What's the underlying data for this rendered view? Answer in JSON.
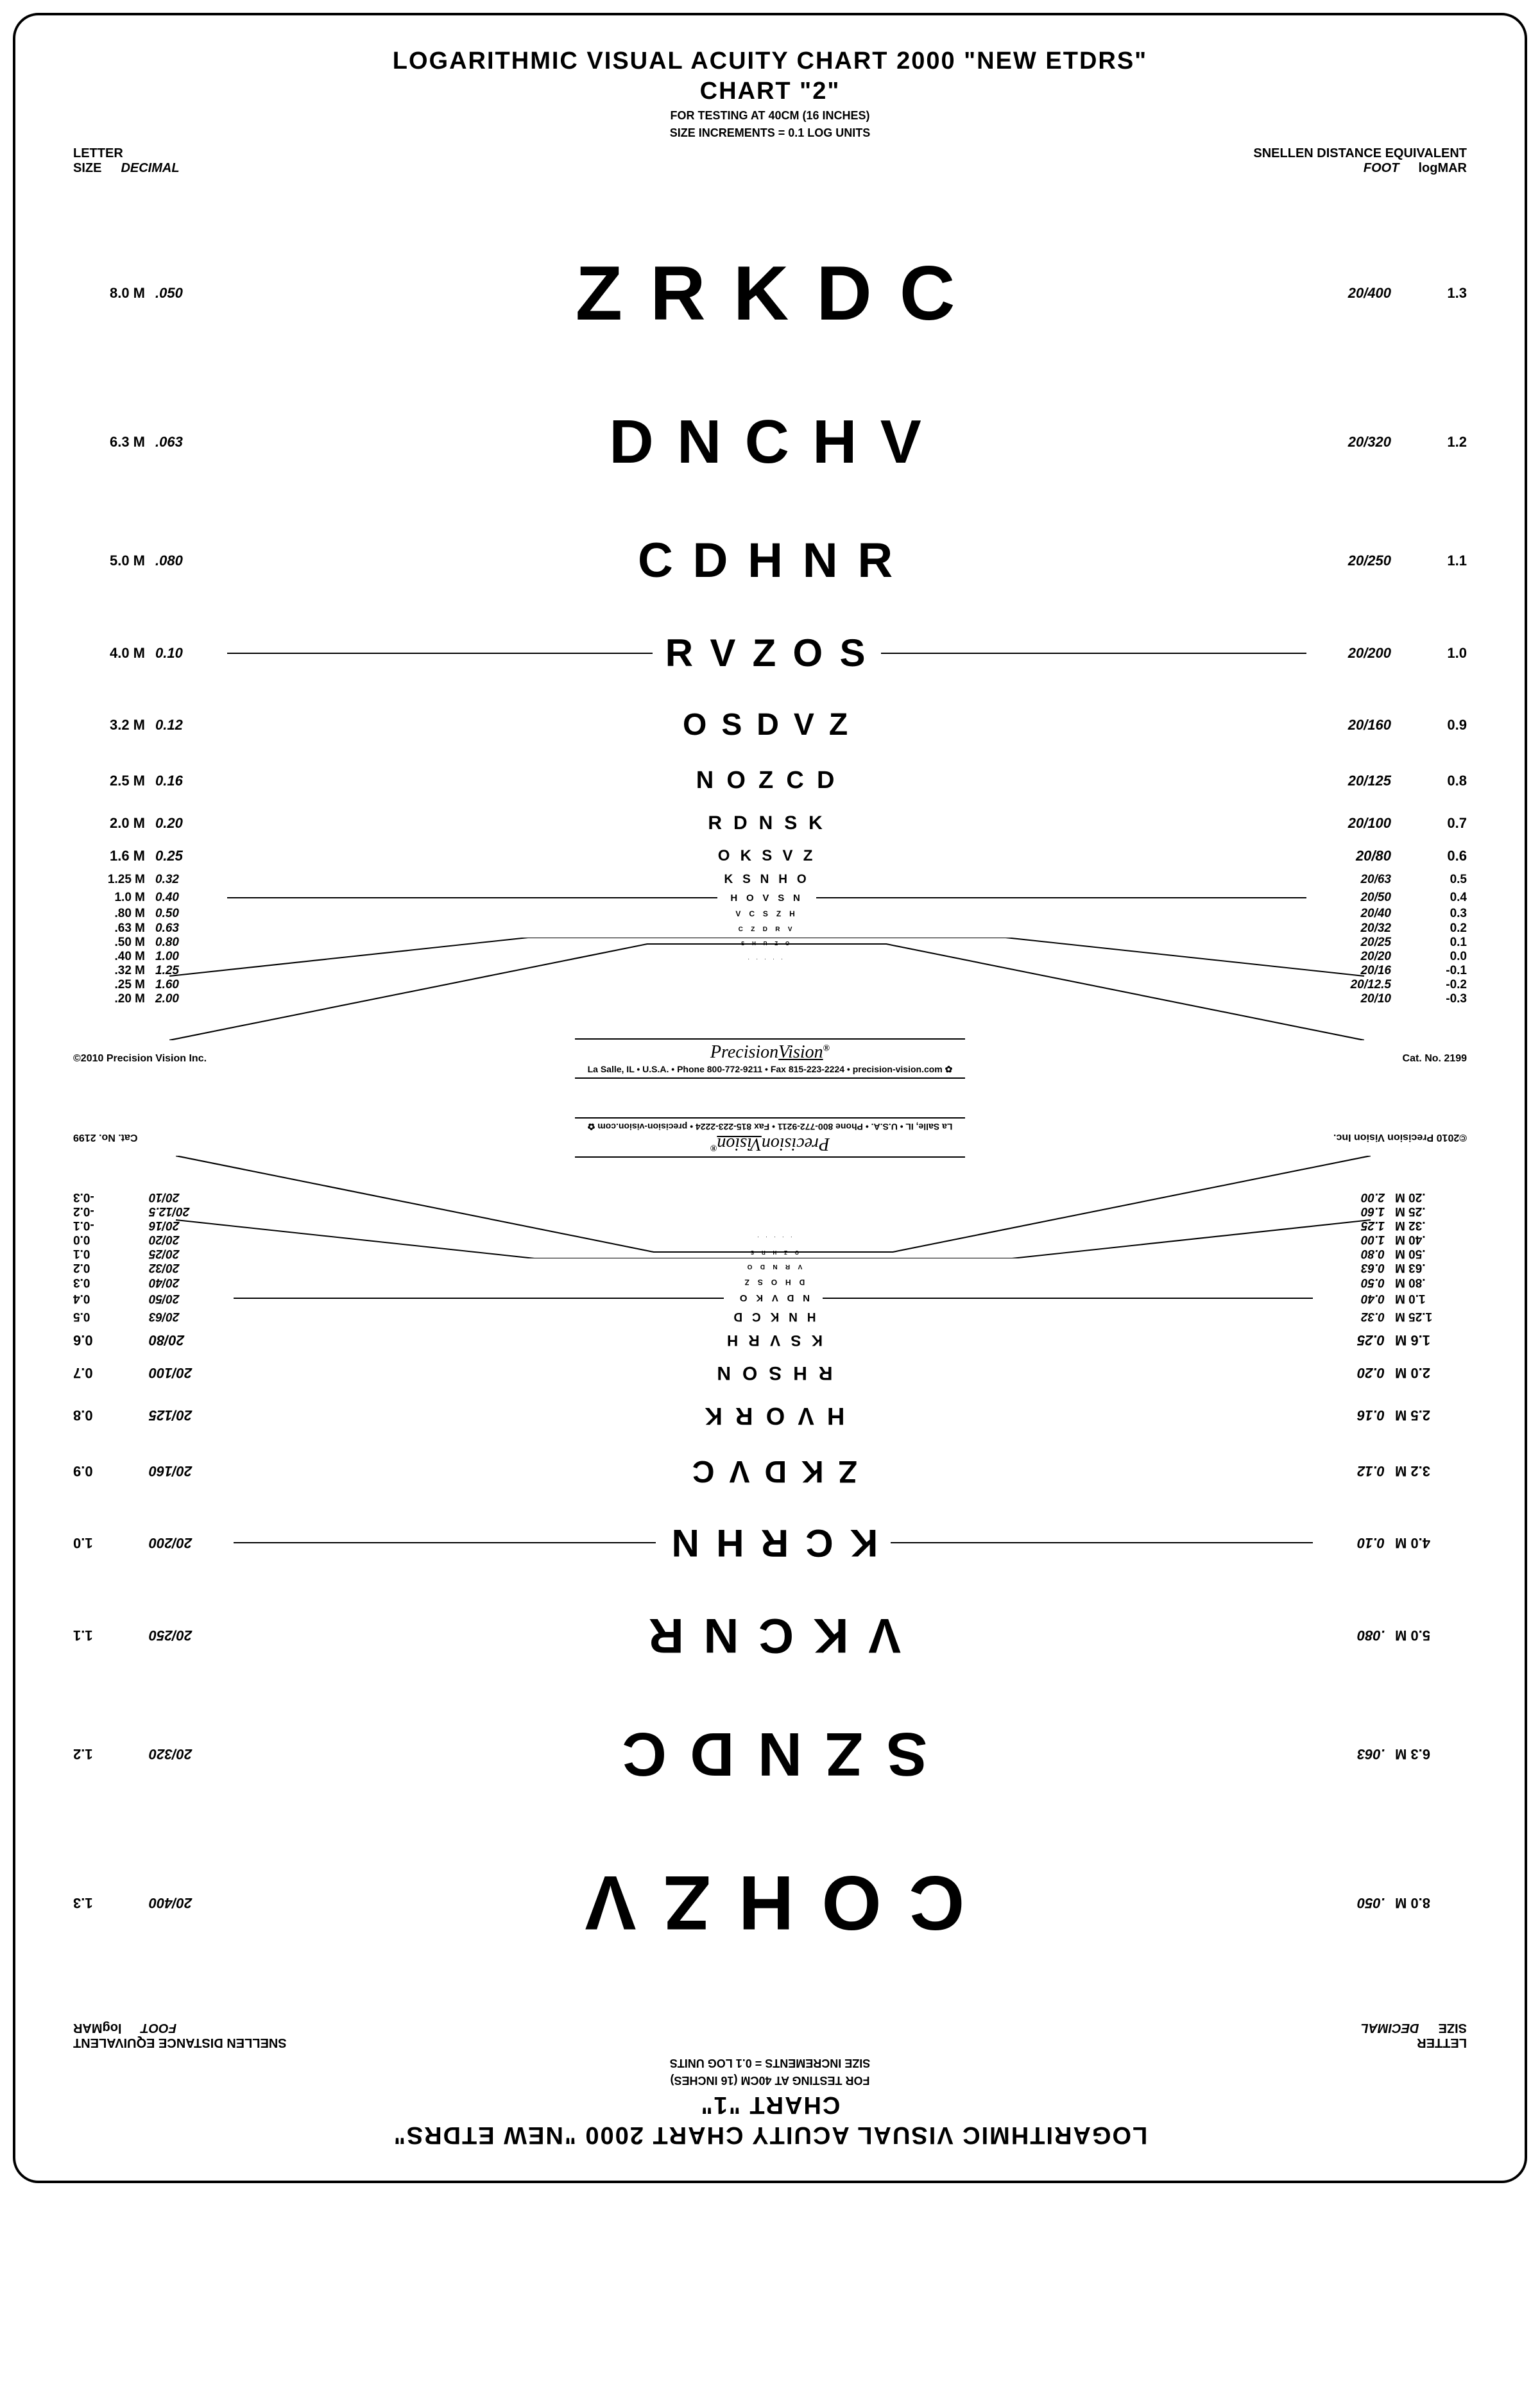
{
  "title_main": "LOGARITHMIC VISUAL ACUITY CHART 2000  \"NEW ETDRS\"",
  "title_small1": "FOR TESTING AT 40CM (16 INCHES)",
  "title_small2": "SIZE INCREMENTS = 0.1 LOG UNITS",
  "hdr_letter_size": "LETTER",
  "hdr_size": "SIZE",
  "hdr_decimal": "DECIMAL",
  "hdr_sde": "SNELLEN DISTANCE EQUIVALENT",
  "hdr_foot": "FOOT",
  "hdr_logmar": "logMAR",
  "footer_copyright": "©2010 Precision Vision Inc.",
  "footer_logo_a": "Precision",
  "footer_logo_b": "Vision",
  "footer_addr": "La Salle, IL • U.S.A. • Phone 800-772-9211 • Fax 815-223-2224 • precision-vision.com ✿",
  "footer_cat": "Cat. No. 2199",
  "chart2": {
    "title_sub": "CHART \"2\"",
    "rows": [
      {
        "m": "8.0 M",
        "dec": ".050",
        "letters": "Z R K D C",
        "sn": "20/400",
        "log": "1.3",
        "fs": 120,
        "pad": 60,
        "rule": 0,
        "sm": 0
      },
      {
        "m": "6.3 M",
        "dec": ".063",
        "letters": "D N C H V",
        "sn": "20/320",
        "log": "1.2",
        "fs": 96,
        "pad": 48,
        "rule": 0,
        "sm": 0
      },
      {
        "m": "5.0 M",
        "dec": ".080",
        "letters": "C D H N R",
        "sn": "20/250",
        "log": "1.1",
        "fs": 76,
        "pad": 38,
        "rule": 0,
        "sm": 0
      },
      {
        "m": "4.0 M",
        "dec": "0.10",
        "letters": "R V Z O S",
        "sn": "20/200",
        "log": "1.0",
        "fs": 60,
        "pad": 28,
        "rule": 1,
        "sm": 0
      },
      {
        "m": "3.2 M",
        "dec": "0.12",
        "letters": "O S D V Z",
        "sn": "20/160",
        "log": "0.9",
        "fs": 48,
        "pad": 22,
        "rule": 0,
        "sm": 0
      },
      {
        "m": "2.5 M",
        "dec": "0.16",
        "letters": "N O Z C D",
        "sn": "20/125",
        "log": "0.8",
        "fs": 38,
        "pad": 16,
        "rule": 0,
        "sm": 0
      },
      {
        "m": "2.0 M",
        "dec": "0.20",
        "letters": "R D N S K",
        "sn": "20/100",
        "log": "0.7",
        "fs": 30,
        "pad": 12,
        "rule": 0,
        "sm": 0
      },
      {
        "m": "1.6 M",
        "dec": "0.25",
        "letters": "O K S V Z",
        "sn": "20/80",
        "log": "0.6",
        "fs": 24,
        "pad": 8,
        "rule": 0,
        "sm": 0
      },
      {
        "m": "1.25 M",
        "dec": "0.32",
        "letters": "K S N H O",
        "sn": "20/63",
        "log": "0.5",
        "fs": 19,
        "pad": 4,
        "rule": 0,
        "sm": 1
      },
      {
        "m": "1.0 M",
        "dec": "0.40",
        "letters": "H O V S N",
        "sn": "20/50",
        "log": "0.4",
        "fs": 15,
        "pad": 2,
        "rule": 1,
        "sm": 1
      },
      {
        "m": ".80 M",
        "dec": "0.50",
        "letters": "V C S Z H",
        "sn": "20/40",
        "log": "0.3",
        "fs": 12,
        "pad": 1,
        "rule": 0,
        "sm": 1
      },
      {
        "m": ".63 M",
        "dec": "0.63",
        "letters": "C Z D R V",
        "sn": "20/32",
        "log": "0.2",
        "fs": 10,
        "pad": 0,
        "rule": 0,
        "sm": 1
      },
      {
        "m": ".50 M",
        "dec": "0.80",
        "letters": "S H R Z O",
        "sn": "20/25",
        "log": "0.1",
        "fs": 8,
        "pad": 0,
        "rule": 0,
        "sm": 1
      },
      {
        "m": ".40 M",
        "dec": "1.00",
        "letters": ". . . . .",
        "sn": "20/20",
        "log": "0.0",
        "fs": 6,
        "pad": 0,
        "rule": 0,
        "sm": 1
      },
      {
        "m": ".32 M",
        "dec": "1.25",
        "letters": "",
        "sn": "20/16",
        "log": "-0.1",
        "fs": 5,
        "pad": 0,
        "rule": 0,
        "sm": 1
      },
      {
        "m": ".25 M",
        "dec": "1.60",
        "letters": "",
        "sn": "20/12.5",
        "log": "-0.2",
        "fs": 4,
        "pad": 0,
        "rule": 0,
        "sm": 1
      },
      {
        "m": ".20 M",
        "dec": "2.00",
        "letters": "",
        "sn": "20/10",
        "log": "-0.3",
        "fs": 3,
        "pad": 0,
        "rule": 0,
        "sm": 1
      }
    ]
  },
  "chart1": {
    "title_sub": "CHART \"1\"",
    "rows": [
      {
        "m": "8.0 M",
        "dec": ".050",
        "letters": "C O H Z V",
        "sn": "20/400",
        "log": "1.3",
        "fs": 120,
        "pad": 60,
        "rule": 0,
        "sm": 0
      },
      {
        "m": "6.3 M",
        "dec": ".063",
        "letters": "S Z N D C",
        "sn": "20/320",
        "log": "1.2",
        "fs": 96,
        "pad": 48,
        "rule": 0,
        "sm": 0
      },
      {
        "m": "5.0 M",
        "dec": ".080",
        "letters": "V K C N R",
        "sn": "20/250",
        "log": "1.1",
        "fs": 76,
        "pad": 38,
        "rule": 0,
        "sm": 0
      },
      {
        "m": "4.0 M",
        "dec": "0.10",
        "letters": "K C R H N",
        "sn": "20/200",
        "log": "1.0",
        "fs": 60,
        "pad": 28,
        "rule": 1,
        "sm": 0
      },
      {
        "m": "3.2 M",
        "dec": "0.12",
        "letters": "Z K D V C",
        "sn": "20/160",
        "log": "0.9",
        "fs": 48,
        "pad": 22,
        "rule": 0,
        "sm": 0
      },
      {
        "m": "2.5 M",
        "dec": "0.16",
        "letters": "H V O R K",
        "sn": "20/125",
        "log": "0.8",
        "fs": 38,
        "pad": 16,
        "rule": 0,
        "sm": 0
      },
      {
        "m": "2.0 M",
        "dec": "0.20",
        "letters": "R H S O N",
        "sn": "20/100",
        "log": "0.7",
        "fs": 30,
        "pad": 12,
        "rule": 0,
        "sm": 0
      },
      {
        "m": "1.6 M",
        "dec": "0.25",
        "letters": "K S V R H",
        "sn": "20/80",
        "log": "0.6",
        "fs": 24,
        "pad": 8,
        "rule": 0,
        "sm": 0
      },
      {
        "m": "1.25 M",
        "dec": "0.32",
        "letters": "H N K C D",
        "sn": "20/63",
        "log": "0.5",
        "fs": 19,
        "pad": 4,
        "rule": 0,
        "sm": 1
      },
      {
        "m": "1.0 M",
        "dec": "0.40",
        "letters": "N D V K O",
        "sn": "20/50",
        "log": "0.4",
        "fs": 15,
        "pad": 2,
        "rule": 1,
        "sm": 1
      },
      {
        "m": ".80 M",
        "dec": "0.50",
        "letters": "D H O S Z",
        "sn": "20/40",
        "log": "0.3",
        "fs": 12,
        "pad": 1,
        "rule": 0,
        "sm": 1
      },
      {
        "m": ".63 M",
        "dec": "0.63",
        "letters": "V R N D O",
        "sn": "20/32",
        "log": "0.2",
        "fs": 10,
        "pad": 0,
        "rule": 0,
        "sm": 1
      },
      {
        "m": ".50 M",
        "dec": "0.80",
        "letters": "O Z H R S",
        "sn": "20/25",
        "log": "0.1",
        "fs": 8,
        "pad": 0,
        "rule": 0,
        "sm": 1
      },
      {
        "m": ".40 M",
        "dec": "1.00",
        "letters": ". . . . .",
        "sn": "20/20",
        "log": "0.0",
        "fs": 6,
        "pad": 0,
        "rule": 0,
        "sm": 1
      },
      {
        "m": ".32 M",
        "dec": "1.25",
        "letters": "",
        "sn": "20/16",
        "log": "-0.1",
        "fs": 5,
        "pad": 0,
        "rule": 0,
        "sm": 1
      },
      {
        "m": ".25 M",
        "dec": "1.60",
        "letters": "",
        "sn": "20/12.5",
        "log": "-0.2",
        "fs": 4,
        "pad": 0,
        "rule": 0,
        "sm": 1
      },
      {
        "m": ".20 M",
        "dec": "2.00",
        "letters": "",
        "sn": "20/10",
        "log": "-0.3",
        "fs": 3,
        "pad": 0,
        "rule": 0,
        "sm": 1
      }
    ]
  }
}
